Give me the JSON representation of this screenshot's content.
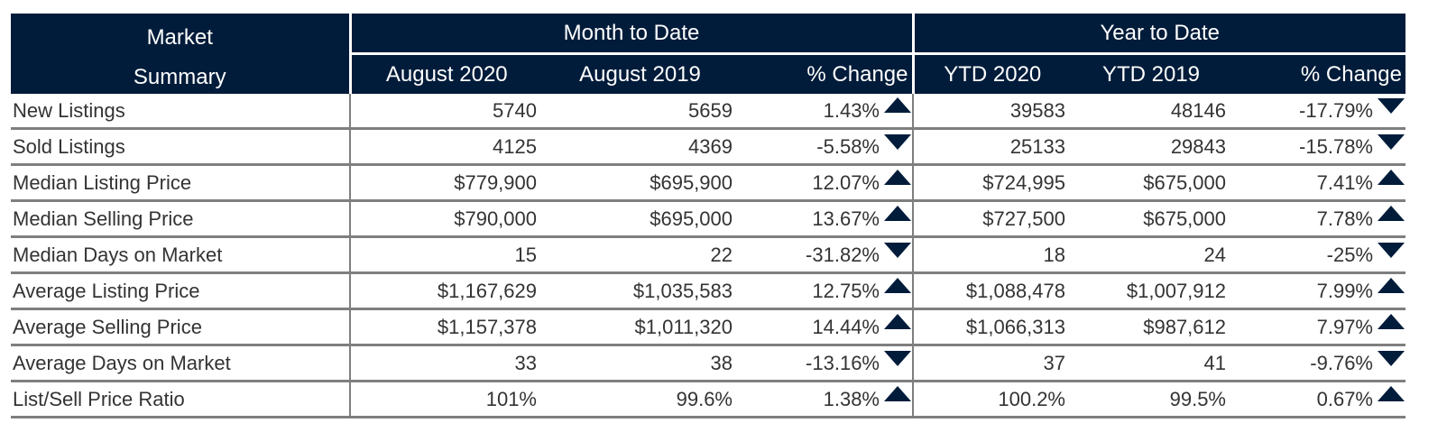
{
  "header": {
    "market_line1": "Market",
    "market_line2": "Summary",
    "mtd_title": "Month to Date",
    "ytd_title": "Year to Date",
    "mtd_cols": [
      "August 2020",
      "August 2019",
      "% Change"
    ],
    "ytd_cols": [
      "YTD 2020",
      "YTD 2019",
      "% Change"
    ]
  },
  "colors": {
    "header_bg": "#001c3a",
    "arrow": "#001c3a",
    "rule": "#7f7f7f",
    "text": "#333333"
  },
  "rows": [
    {
      "label": "New Listings",
      "mtd_2020": "5740",
      "mtd_2019": "5659",
      "mtd_change": "1.43%",
      "mtd_arrow": "up-arrow-icon",
      "ytd_2020": "39583",
      "ytd_2019": "48146",
      "ytd_change": "-17.79%",
      "ytd_arrow": "down-arrow-icon"
    },
    {
      "label": "Sold Listings",
      "mtd_2020": "4125",
      "mtd_2019": "4369",
      "mtd_change": "-5.58%",
      "mtd_arrow": "down-arrow-icon",
      "ytd_2020": "25133",
      "ytd_2019": "29843",
      "ytd_change": "-15.78%",
      "ytd_arrow": "down-arrow-icon"
    },
    {
      "label": "Median Listing Price",
      "mtd_2020": "$779,900",
      "mtd_2019": "$695,900",
      "mtd_change": "12.07%",
      "mtd_arrow": "up-arrow-icon",
      "ytd_2020": "$724,995",
      "ytd_2019": "$675,000",
      "ytd_change": "7.41%",
      "ytd_arrow": "up-arrow-icon"
    },
    {
      "label": "Median Selling Price",
      "mtd_2020": "$790,000",
      "mtd_2019": "$695,000",
      "mtd_change": "13.67%",
      "mtd_arrow": "up-arrow-icon",
      "ytd_2020": "$727,500",
      "ytd_2019": "$675,000",
      "ytd_change": "7.78%",
      "ytd_arrow": "up-arrow-icon"
    },
    {
      "label": "Median Days on Market",
      "mtd_2020": "15",
      "mtd_2019": "22",
      "mtd_change": "-31.82%",
      "mtd_arrow": "down-arrow-icon",
      "ytd_2020": "18",
      "ytd_2019": "24",
      "ytd_change": "-25%",
      "ytd_arrow": "down-arrow-icon"
    },
    {
      "label": "Average Listing Price",
      "mtd_2020": "$1,167,629",
      "mtd_2019": "$1,035,583",
      "mtd_change": "12.75%",
      "mtd_arrow": "up-arrow-icon",
      "ytd_2020": "$1,088,478",
      "ytd_2019": "$1,007,912",
      "ytd_change": "7.99%",
      "ytd_arrow": "up-arrow-icon"
    },
    {
      "label": "Average Selling Price",
      "mtd_2020": "$1,157,378",
      "mtd_2019": "$1,011,320",
      "mtd_change": "14.44%",
      "mtd_arrow": "up-arrow-icon",
      "ytd_2020": "$1,066,313",
      "ytd_2019": "$987,612",
      "ytd_change": "7.97%",
      "ytd_arrow": "up-arrow-icon"
    },
    {
      "label": "Average Days on Market",
      "mtd_2020": "33",
      "mtd_2019": "38",
      "mtd_change": "-13.16%",
      "mtd_arrow": "down-arrow-icon",
      "ytd_2020": "37",
      "ytd_2019": "41",
      "ytd_change": "-9.76%",
      "ytd_arrow": "down-arrow-icon"
    },
    {
      "label": "List/Sell Price Ratio",
      "mtd_2020": "101%",
      "mtd_2019": "99.6%",
      "mtd_change": "1.38%",
      "mtd_arrow": "up-arrow-icon",
      "ytd_2020": "100.2%",
      "ytd_2019": "99.5%",
      "ytd_change": "0.67%",
      "ytd_arrow": "up-arrow-icon"
    }
  ]
}
